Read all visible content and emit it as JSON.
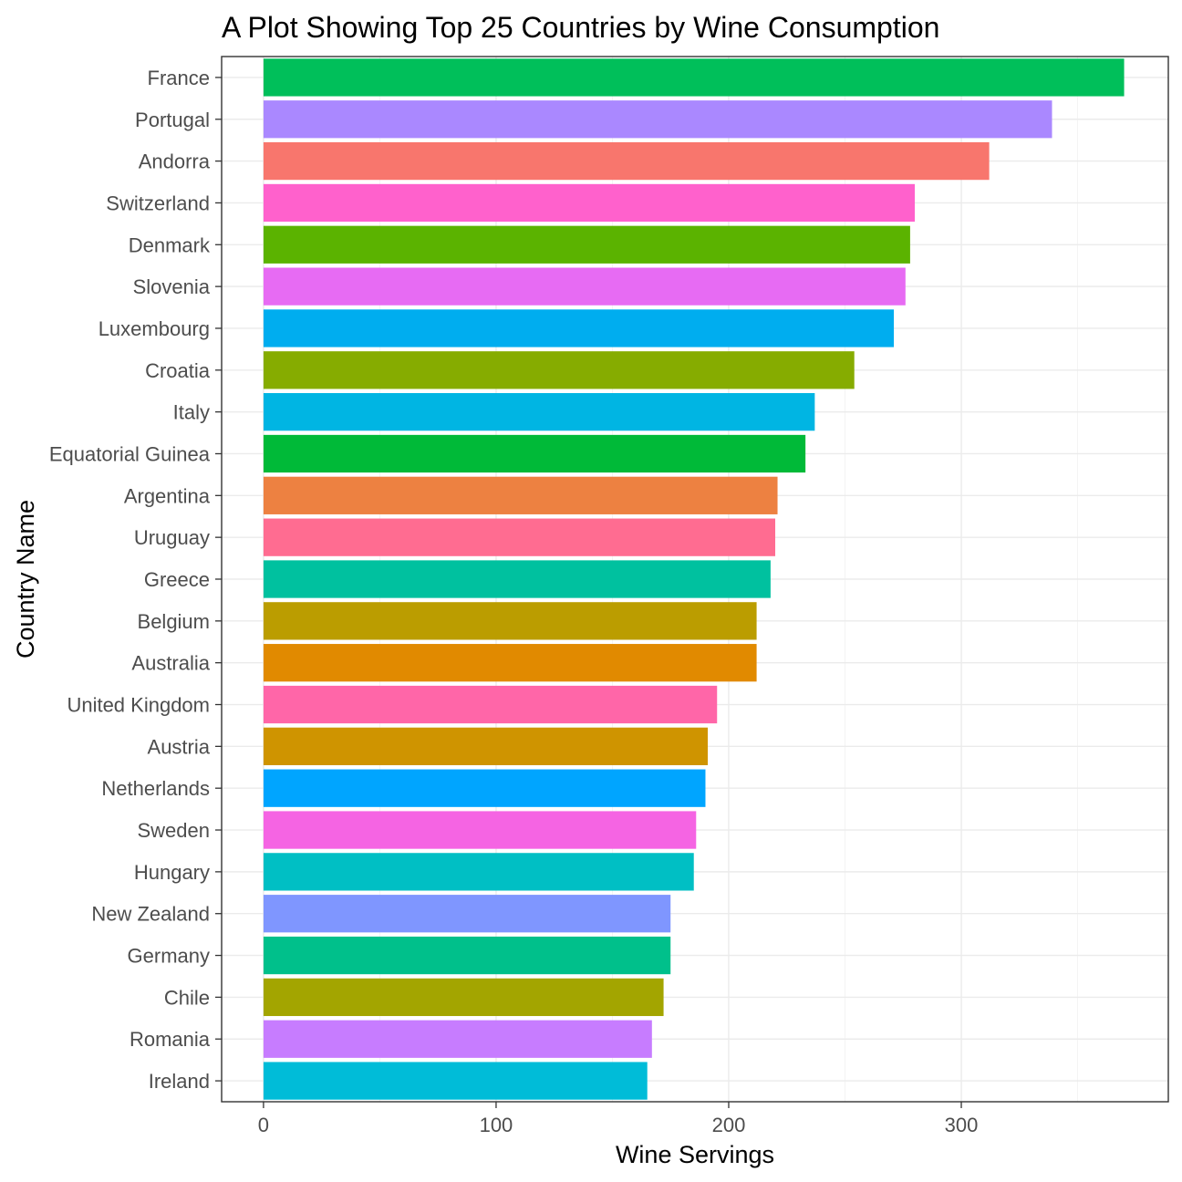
{
  "chart_data": {
    "type": "bar",
    "orientation": "horizontal",
    "title": "A Plot Showing Top 25 Countries by Wine Consumption",
    "xlabel": "Wine Servings",
    "ylabel": "Country Name",
    "xlim": [
      -18,
      389
    ],
    "xticks": [
      0,
      100,
      200,
      300
    ],
    "grid": true,
    "legend": "none",
    "categories": [
      "France",
      "Portugal",
      "Andorra",
      "Switzerland",
      "Denmark",
      "Slovenia",
      "Luxembourg",
      "Croatia",
      "Italy",
      "Equatorial Guinea",
      "Argentina",
      "Uruguay",
      "Greece",
      "Belgium",
      "Australia",
      "United Kingdom",
      "Austria",
      "Netherlands",
      "Sweden",
      "Hungary",
      "New Zealand",
      "Germany",
      "Chile",
      "Romania",
      "Ireland"
    ],
    "values": [
      370,
      339,
      312,
      280,
      278,
      276,
      271,
      254,
      237,
      233,
      221,
      220,
      218,
      212,
      212,
      195,
      191,
      190,
      186,
      185,
      175,
      175,
      172,
      167,
      165
    ],
    "colors": [
      "#00BF5A",
      "#AA88FF",
      "#F8766D",
      "#FF61CC",
      "#5BB300",
      "#E76BF3",
      "#00ADEF",
      "#86AC00",
      "#00B5E3",
      "#00BA38",
      "#ED8141",
      "#FF6C91",
      "#00C19F",
      "#BB9D00",
      "#E18A00",
      "#FF66A8",
      "#CF9400",
      "#00A5FF",
      "#F564E3",
      "#00BFC4",
      "#7F96FF",
      "#00C08B",
      "#A3A500",
      "#C77CFF",
      "#00BCD8"
    ]
  }
}
